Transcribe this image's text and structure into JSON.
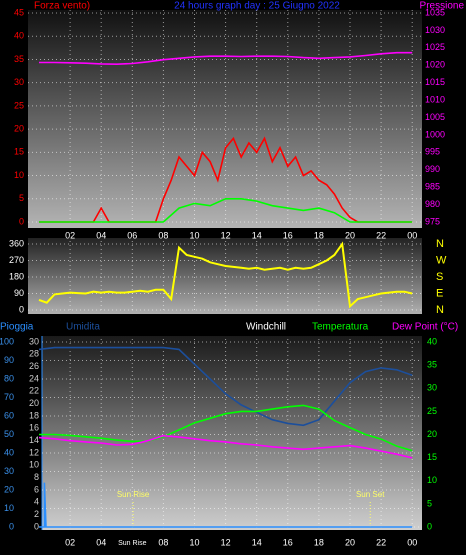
{
  "chart_data": [
    {
      "type": "line",
      "title": "24 hours graph day : 25 Giugno 2022",
      "ylabel": "Forza vento)",
      "y2label": "Pressione",
      "xlim": [
        0,
        24
      ],
      "xticks": [
        {
          "value": 2,
          "label": "02"
        },
        {
          "value": 4,
          "label": "04"
        },
        {
          "value": 6,
          "label": "06"
        },
        {
          "value": 8,
          "label": "08"
        },
        10,
        12,
        14,
        16,
        18,
        20,
        22,
        {
          "value": 24,
          "label": "00"
        }
      ],
      "ylim": [
        0,
        45
      ],
      "yticks": [
        0,
        5,
        10,
        15,
        20,
        25,
        30,
        35,
        40,
        45
      ],
      "y2lim": [
        975,
        1035
      ],
      "y2ticks": [
        975,
        980,
        985,
        990,
        995,
        1000,
        1005,
        1010,
        1015,
        1020,
        1025,
        1030,
        1035
      ],
      "grid": true,
      "series": [
        {
          "color": "#ff0000",
          "x": [
            0,
            0.5,
            1,
            1.5,
            2,
            2.5,
            3,
            3.5,
            4,
            4.5,
            5,
            5.5,
            6,
            6.5,
            7,
            7.5,
            8,
            8.5,
            9,
            9.5,
            10,
            10.5,
            11,
            11.5,
            12,
            12.5,
            13,
            13.5,
            14,
            14.5,
            15,
            15.5,
            16,
            16.5,
            17,
            17.5,
            18,
            18.5,
            19,
            19.5,
            20,
            20.5,
            21,
            21.5,
            22,
            22.5,
            23,
            23.5,
            24
          ],
          "values": [
            0,
            0,
            0,
            0,
            0,
            0,
            0,
            0,
            3,
            0,
            0,
            0,
            0,
            0,
            0,
            0,
            5,
            9,
            14,
            12,
            10,
            15,
            13,
            9,
            16,
            18,
            14,
            17,
            15,
            18,
            13,
            16,
            12,
            14,
            10,
            11,
            9,
            8,
            6,
            3,
            1,
            0,
            0,
            0,
            0,
            0,
            0,
            0,
            0
          ]
        },
        {
          "color": "#00ff00",
          "x": [
            0,
            1,
            2,
            3,
            4,
            5,
            6,
            7,
            8,
            9,
            10,
            11,
            12,
            13,
            14,
            15,
            16,
            17,
            18,
            19,
            20,
            21,
            22,
            23,
            24
          ],
          "values": [
            0,
            0,
            0,
            0,
            0,
            0,
            0,
            0,
            0,
            3,
            4,
            3.5,
            5,
            5,
            4.5,
            3.5,
            3,
            2.5,
            3,
            2,
            0,
            0,
            0,
            0,
            0
          ]
        },
        {
          "color": "#ff00ff",
          "axis": "y2",
          "x": [
            0,
            1,
            2,
            3,
            4,
            5,
            6,
            7,
            8,
            9,
            10,
            11,
            12,
            13,
            14,
            15,
            16,
            17,
            18,
            19,
            20,
            21,
            22,
            23,
            24
          ],
          "values": [
            1020.8,
            1020.8,
            1020.7,
            1020.6,
            1020.4,
            1020.3,
            1020.5,
            1021,
            1021.6,
            1022,
            1022.4,
            1022.6,
            1022.6,
            1022.5,
            1022.6,
            1022.6,
            1022.5,
            1022.2,
            1022,
            1022.2,
            1022.4,
            1022.8,
            1023.3,
            1023.6,
            1023.6
          ]
        }
      ]
    },
    {
      "type": "line",
      "xlim": [
        0,
        24
      ],
      "ylim": [
        0,
        360
      ],
      "yticks": [
        0,
        90,
        180,
        270,
        360
      ],
      "y2lim": [
        0,
        360
      ],
      "y2ticks": [
        {
          "value": 360,
          "label": "N"
        },
        {
          "value": 270,
          "label": "W"
        },
        {
          "value": 180,
          "label": "S"
        },
        {
          "value": 90,
          "label": "E"
        },
        {
          "value": 0,
          "label": "N"
        }
      ],
      "grid": true,
      "series": [
        {
          "color": "#ffff00",
          "x": [
            0,
            0.5,
            1,
            1.5,
            2,
            2.5,
            3,
            3.5,
            4,
            4.5,
            5,
            5.5,
            6,
            6.5,
            7,
            7.5,
            8,
            8.5,
            9,
            9.5,
            10,
            10.5,
            11,
            11.5,
            12,
            12.5,
            13,
            13.5,
            14,
            14.5,
            15,
            15.5,
            16,
            16.5,
            17,
            17.5,
            18,
            18.5,
            19,
            19.5,
            20,
            20.5,
            21,
            21.5,
            22,
            22.5,
            23,
            23.5,
            24
          ],
          "values": [
            55,
            40,
            85,
            90,
            95,
            92,
            90,
            100,
            95,
            100,
            95,
            95,
            100,
            105,
            100,
            110,
            110,
            60,
            340,
            300,
            290,
            280,
            260,
            250,
            240,
            235,
            230,
            225,
            230,
            220,
            225,
            230,
            220,
            230,
            225,
            230,
            250,
            270,
            300,
            360,
            20,
            60,
            70,
            80,
            90,
            95,
            100,
            100,
            90
          ]
        }
      ]
    },
    {
      "type": "line",
      "xlim": [
        0,
        24
      ],
      "xticks": [
        {
          "value": 2,
          "label": "02"
        },
        {
          "value": 4,
          "label": "04"
        },
        {
          "value": 6,
          "label": "Sun Rise"
        },
        {
          "value": 8,
          "label": "08"
        },
        10,
        12,
        14,
        16,
        18,
        20,
        22,
        {
          "value": 24,
          "label": "00"
        }
      ],
      "ylim": [
        0,
        100
      ],
      "yticks": [
        0,
        10,
        20,
        30,
        40,
        50,
        60,
        70,
        80,
        90,
        100
      ],
      "y2lim": [
        0,
        30
      ],
      "y2ticks": [
        0,
        2,
        4,
        6,
        8,
        10,
        12,
        14,
        16,
        18,
        20,
        22,
        24,
        26,
        28,
        30
      ],
      "y3lim": [
        0,
        40
      ],
      "y3ticks": [
        0,
        5,
        10,
        15,
        20,
        25,
        30,
        35,
        40
      ],
      "grid": true,
      "annotations": [
        {
          "text": "Sun Rise",
          "x": 6.05
        },
        {
          "text": "Sun Set",
          "x": 21.3
        }
      ],
      "series": [
        {
          "name": "Pioggia",
          "color": "#2b8fff",
          "x": [
            0,
            0.35,
            0.35,
            0.45,
            24
          ],
          "values": [
            0,
            0,
            24,
            0,
            0
          ]
        },
        {
          "name": "Umidita",
          "color": "#1c4f9c",
          "x": [
            0,
            1,
            2,
            3,
            4,
            5,
            6,
            7,
            8,
            9,
            10,
            11,
            12,
            13,
            14,
            15,
            16,
            17,
            18,
            19,
            20,
            21,
            22,
            23,
            24
          ],
          "values": [
            96,
            97,
            97,
            97,
            97,
            97,
            97,
            97,
            97,
            96,
            88,
            80,
            72,
            66,
            62,
            58,
            56,
            55,
            58,
            68,
            78,
            84,
            86,
            85,
            82
          ]
        },
        {
          "name": "Windchill",
          "color": "#ffffff",
          "x": [],
          "values": []
        },
        {
          "name": "Temperatura",
          "color": "#00ff00",
          "axis": "y3",
          "x": [
            0,
            1,
            2,
            3,
            4,
            5,
            6,
            7,
            8,
            9,
            10,
            11,
            12,
            13,
            14,
            15,
            16,
            17,
            18,
            19,
            20,
            21,
            22,
            23,
            24
          ],
          "values": [
            20,
            20,
            19.8,
            19.5,
            19.2,
            18.8,
            18.5,
            18.6,
            19.5,
            21,
            22.5,
            23.5,
            24.5,
            25,
            25,
            25.5,
            26,
            26.3,
            25.5,
            23,
            21.5,
            20,
            19,
            17.5,
            16.5
          ]
        },
        {
          "name": "Dew Point (°C)",
          "color": "#ff00ff",
          "axis": "y2",
          "x": [
            0,
            1,
            2,
            3,
            4,
            5,
            6,
            7,
            8,
            9,
            10,
            11,
            12,
            13,
            14,
            15,
            16,
            17,
            18,
            19,
            20,
            21,
            22,
            23,
            24
          ],
          "values": [
            14.5,
            14.3,
            14,
            13.8,
            13.6,
            13.3,
            13.4,
            14,
            14.8,
            14.6,
            14.3,
            14,
            13.8,
            13.5,
            13.3,
            13,
            12.8,
            12.6,
            12.8,
            13,
            13.2,
            12.8,
            12.3,
            11.8,
            11.2
          ]
        }
      ]
    }
  ]
}
